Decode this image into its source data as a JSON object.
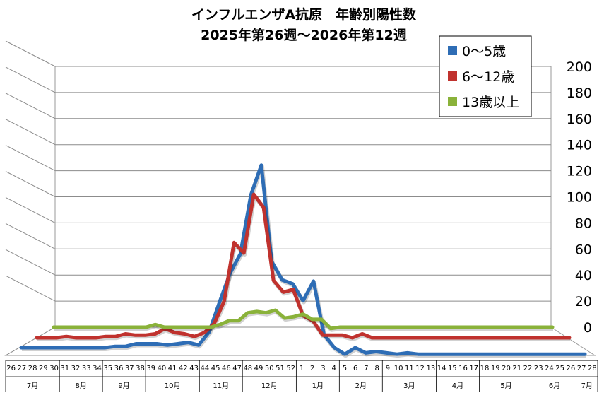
{
  "chart_data": {
    "type": "line",
    "title": "インフルエンザA抗原　年齢別陽性数",
    "subtitle": "2025年第26週～2026年第12週",
    "ylim": [
      0,
      200
    ],
    "yticks": [
      "0",
      "20",
      "40",
      "60",
      "80",
      "100",
      "120",
      "140",
      "160",
      "180",
      "200"
    ],
    "grid": true,
    "legend_position": "top-right",
    "x": [
      "26",
      "27",
      "28",
      "29",
      "30",
      "31",
      "32",
      "33",
      "34",
      "35",
      "36",
      "37",
      "38",
      "39",
      "40",
      "41",
      "42",
      "43",
      "44",
      "45",
      "46",
      "47",
      "48",
      "49",
      "50",
      "51",
      "52",
      "1",
      "2",
      "3",
      "4",
      "5",
      "6",
      "7",
      "8",
      "9",
      "10",
      "11",
      "12",
      "13",
      "14",
      "15",
      "16",
      "17",
      "18",
      "19",
      "20",
      "21",
      "22",
      "23",
      "24",
      "25",
      "26",
      "27",
      "28"
    ],
    "months": [
      {
        "label": "7月",
        "start": 0,
        "end": 4
      },
      {
        "label": "8月",
        "start": 5,
        "end": 8
      },
      {
        "label": "9月",
        "start": 9,
        "end": 12
      },
      {
        "label": "10月",
        "start": 13,
        "end": 17
      },
      {
        "label": "11月",
        "start": 18,
        "end": 21
      },
      {
        "label": "12月",
        "start": 22,
        "end": 26
      },
      {
        "label": "1月",
        "start": 27,
        "end": 30
      },
      {
        "label": "2月",
        "start": 31,
        "end": 34
      },
      {
        "label": "3月",
        "start": 35,
        "end": 39
      },
      {
        "label": "4月",
        "start": 40,
        "end": 43
      },
      {
        "label": "5月",
        "start": 44,
        "end": 48
      },
      {
        "label": "6月",
        "start": 49,
        "end": 52
      },
      {
        "label": "7月",
        "start": 53,
        "end": 54
      }
    ],
    "series": [
      {
        "name": "0～5歳",
        "color": "#2e6db5",
        "values": [
          0,
          0,
          0,
          0,
          0,
          0,
          0,
          0,
          0,
          1,
          1,
          3,
          3,
          3,
          2,
          3,
          4,
          2,
          12,
          35,
          57,
          72,
          117,
          140,
          66,
          52,
          49,
          36,
          51,
          10,
          0,
          -5,
          0,
          -4,
          -3,
          -4,
          -5,
          -4,
          -5,
          -5,
          -5,
          -5,
          -5,
          -5,
          -5,
          -5,
          -5,
          -5,
          -5,
          -5,
          -5,
          -5,
          -5,
          -5,
          -5
        ]
      },
      {
        "name": "6～12歳",
        "color": "#c0322e",
        "values": [
          0,
          0,
          0,
          1,
          0,
          0,
          0,
          1,
          1,
          3,
          2,
          2,
          3,
          7,
          4,
          3,
          1,
          4,
          11,
          28,
          73,
          65,
          110,
          100,
          44,
          35,
          37,
          17,
          13,
          2,
          2,
          2,
          0,
          3,
          0,
          0,
          0,
          0,
          0,
          0,
          0,
          0,
          0,
          0,
          0,
          0,
          0,
          0,
          0,
          0,
          0,
          0,
          0,
          0,
          0
        ]
      },
      {
        "name": "13歳以上",
        "color": "#8ab23a",
        "values": [
          0,
          0,
          0,
          0,
          0,
          0,
          0,
          0,
          0,
          0,
          0,
          2,
          0,
          0,
          0,
          0,
          0,
          0,
          2,
          5,
          5,
          11,
          12,
          11,
          13,
          7,
          8,
          10,
          6,
          6,
          -1,
          0,
          0,
          0,
          0,
          0,
          0,
          0,
          0,
          0,
          0,
          0,
          0,
          0,
          0,
          0,
          0,
          0,
          0,
          0,
          0,
          0,
          0,
          0,
          0
        ]
      }
    ]
  }
}
